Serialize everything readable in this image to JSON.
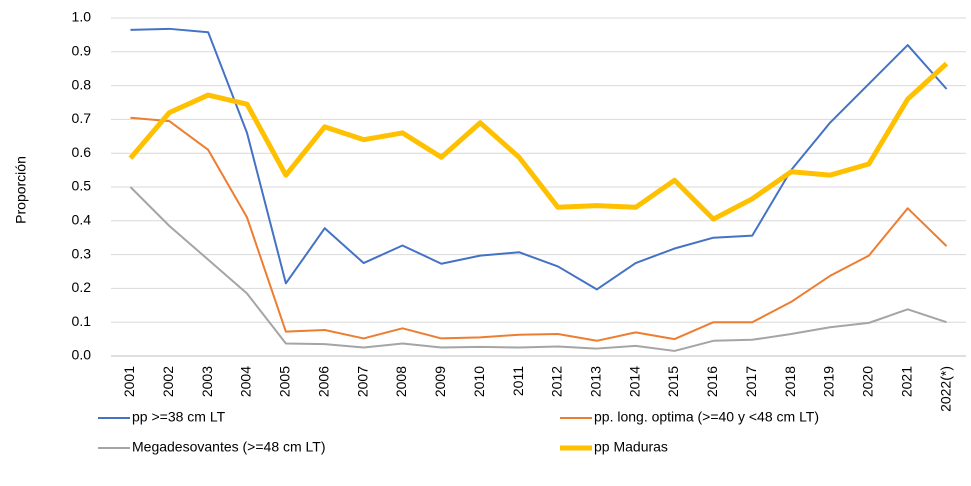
{
  "chart_data": {
    "type": "line",
    "y_label": "Proporción",
    "categories": [
      "2001",
      "2002",
      "2003",
      "2004",
      "2005",
      "2006",
      "2007",
      "2008",
      "2009",
      "2010",
      "2011",
      "2012",
      "2013",
      "2014",
      "2015",
      "2016",
      "2017",
      "2018",
      "2019",
      "2020",
      "2021",
      "2022(*)"
    ],
    "series": [
      {
        "name": "pp >=38 cm LT",
        "color": "#4472c4",
        "values": [
          0.965,
          0.968,
          0.958,
          0.66,
          0.215,
          0.378,
          0.275,
          0.327,
          0.273,
          0.297,
          0.307,
          0.265,
          0.197,
          0.275,
          0.318,
          0.35,
          0.356,
          0.55,
          0.69,
          0.805,
          0.92,
          0.79
        ]
      },
      {
        "name": "pp. long. optima (>=40 y <48 cm LT)",
        "color": "#ed7d31",
        "values": [
          0.705,
          0.695,
          0.61,
          0.41,
          0.072,
          0.077,
          0.052,
          0.082,
          0.052,
          0.055,
          0.063,
          0.065,
          0.045,
          0.07,
          0.05,
          0.1,
          0.1,
          0.16,
          0.237,
          0.297,
          0.437,
          0.325
        ]
      },
      {
        "name": "Megadesovantes (>=48 cm LT)",
        "color": "#a5a5a5",
        "values": [
          0.5,
          0.385,
          0.285,
          0.185,
          0.037,
          0.035,
          0.025,
          0.037,
          0.025,
          0.027,
          0.025,
          0.028,
          0.022,
          0.03,
          0.015,
          0.045,
          0.048,
          0.065,
          0.085,
          0.098,
          0.138,
          0.1
        ]
      },
      {
        "name": "pp Maduras",
        "color": "#ffc000",
        "values": [
          0.585,
          0.72,
          0.772,
          0.745,
          0.535,
          0.678,
          0.64,
          0.66,
          0.588,
          0.69,
          0.588,
          0.44,
          0.445,
          0.44,
          0.52,
          0.405,
          0.465,
          0.545,
          0.535,
          0.568,
          0.76,
          0.865
        ]
      }
    ],
    "ylim": [
      0,
      1
    ],
    "yticks": [
      {
        "value": 0,
        "label": "0.0"
      },
      0.1,
      0.2,
      0.3,
      0.4,
      0.5,
      0.6,
      0.7,
      0.8,
      0.9,
      {
        "value": 1,
        "label": "1.0"
      }
    ],
    "grid": true
  }
}
